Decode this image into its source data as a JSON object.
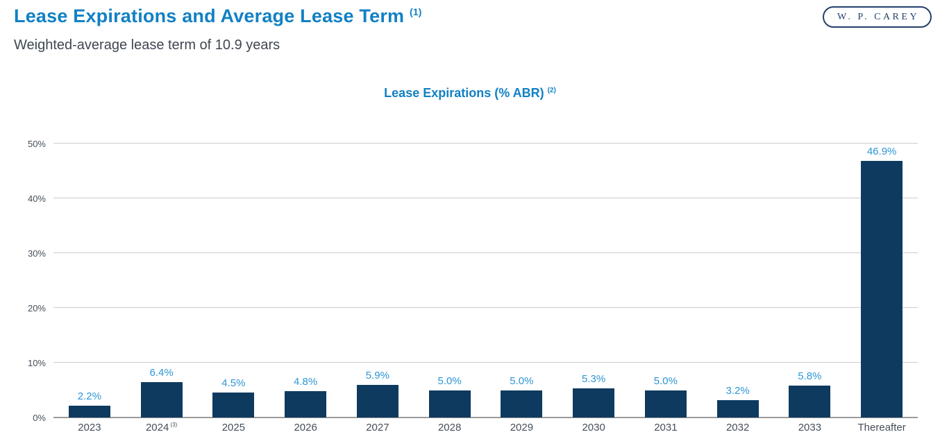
{
  "header": {
    "title": "Lease Expirations and Average Lease Term",
    "title_footnote": "(1)",
    "subtitle": "Weighted-average lease term of 10.9 years",
    "logo_text": "W. P. CAREY"
  },
  "colors": {
    "title_blue": "#1180C4",
    "subtitle_dark": "#3E4652",
    "logo_navy": "#24406B",
    "bar_navy": "#0E3A5F",
    "value_label_blue": "#2D96D5",
    "axis_label_gray": "#454E59",
    "gridline": "#CCCCCC",
    "axis_line": "#9A9A9A"
  },
  "chart_data": {
    "type": "bar",
    "title": "Lease Expirations (% ABR)",
    "title_footnote": "(2)",
    "categories": [
      "2023",
      "2024",
      "2025",
      "2026",
      "2027",
      "2028",
      "2029",
      "2030",
      "2031",
      "2032",
      "2033",
      "Thereafter"
    ],
    "category_footnotes": [
      "",
      "(3)",
      "",
      "",
      "",
      "",
      "",
      "",
      "",
      "",
      "",
      ""
    ],
    "values": [
      2.2,
      6.4,
      4.5,
      4.8,
      5.9,
      5.0,
      5.0,
      5.3,
      5.0,
      3.2,
      5.8,
      46.9
    ],
    "value_labels": [
      "2.2%",
      "6.4%",
      "4.5%",
      "4.8%",
      "5.9%",
      "5.0%",
      "5.0%",
      "5.3%",
      "5.0%",
      "3.2%",
      "5.8%",
      "46.9%"
    ],
    "xlabel": "",
    "ylabel": "",
    "ylim": [
      0,
      50
    ],
    "y_ticks": [
      0,
      10,
      20,
      30,
      40,
      50
    ],
    "y_tick_labels": [
      "0%",
      "10%",
      "20%",
      "30%",
      "40%",
      "50%"
    ],
    "grid": true,
    "legend": "none"
  }
}
